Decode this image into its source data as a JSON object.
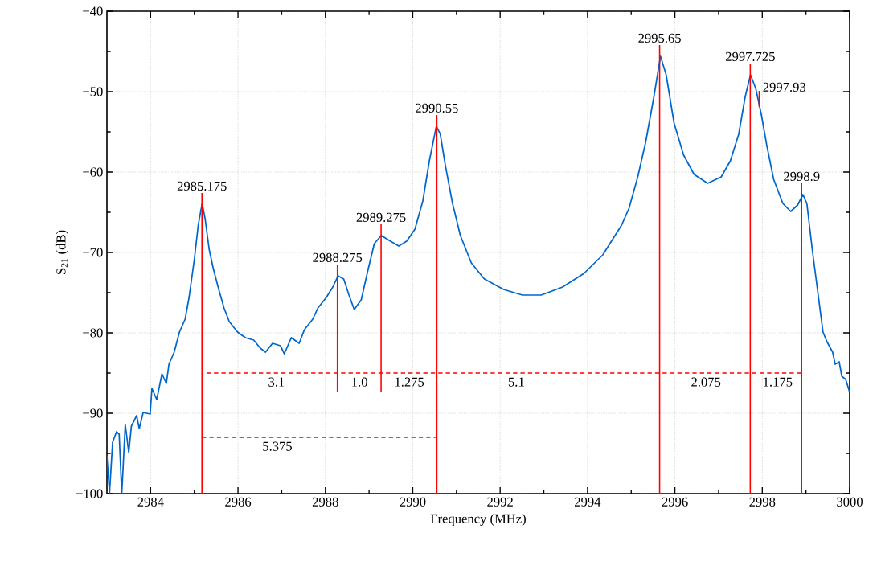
{
  "chart_data": {
    "type": "line",
    "xlabel": "Frequency (MHz)",
    "ylabel": "S$_{21}$ (dB)",
    "xlim": [
      2983,
      3000
    ],
    "ylim": [
      -100,
      -40
    ],
    "xticks": [
      2984,
      2986,
      2988,
      2990,
      2992,
      2994,
      2996,
      2998,
      3000
    ],
    "yticks": [
      {
        "value": -100,
        "label": "−100"
      },
      {
        "value": -90,
        "label": "−90"
      },
      {
        "value": -80,
        "label": "−80"
      },
      {
        "value": -70,
        "label": "−70"
      },
      {
        "value": -60,
        "label": "−60"
      },
      {
        "value": -50,
        "label": "−50"
      },
      {
        "value": -40,
        "label": "−40"
      }
    ],
    "grid": true,
    "series": [
      {
        "type": "line",
        "color": "#0066cc",
        "x": [
          2983.0,
          2983.06,
          2983.13,
          2983.22,
          2983.28,
          2983.34,
          2983.42,
          2983.5,
          2983.56,
          2983.68,
          2983.74,
          2983.83,
          2983.99,
          2984.03,
          2984.14,
          2984.26,
          2984.36,
          2984.42,
          2984.54,
          2984.66,
          2984.79,
          2984.88,
          2985.0,
          2985.09,
          2985.18,
          2985.25,
          2985.34,
          2985.43,
          2985.56,
          2985.68,
          2985.8,
          2985.99,
          2986.17,
          2986.36,
          2986.51,
          2986.63,
          2986.79,
          2986.97,
          2987.06,
          2987.22,
          2987.4,
          2987.52,
          2987.71,
          2987.83,
          2988.02,
          2988.17,
          2988.29,
          2988.42,
          2988.54,
          2988.66,
          2988.82,
          2988.97,
          2989.12,
          2989.28,
          2989.49,
          2989.68,
          2989.86,
          2990.05,
          2990.23,
          2990.38,
          2990.54,
          2990.63,
          2990.75,
          2990.91,
          2991.09,
          2991.34,
          2991.64,
          2992.08,
          2992.51,
          2992.94,
          2993.43,
          2993.92,
          2994.35,
          2994.78,
          2994.95,
          2995.15,
          2995.33,
          2995.52,
          2995.67,
          2995.8,
          2995.98,
          2996.2,
          2996.44,
          2996.75,
          2997.06,
          2997.27,
          2997.46,
          2997.61,
          2997.73,
          2997.85,
          2997.98,
          2998.1,
          2998.26,
          2998.47,
          2998.65,
          2998.81,
          2998.93,
          2999.02,
          2999.15,
          2999.27,
          2999.39,
          2999.48,
          2999.61,
          2999.67,
          2999.76,
          2999.82,
          2999.91,
          3000.0
        ],
        "values": [
          -95.3,
          -99.9,
          -93.6,
          -92.3,
          -92.6,
          -100,
          -91.4,
          -94.9,
          -91.6,
          -90.3,
          -91.9,
          -89.9,
          -90.1,
          -86.9,
          -88.3,
          -85.1,
          -86.3,
          -83.9,
          -82.4,
          -79.9,
          -78.3,
          -75.6,
          -70.9,
          -66.6,
          -63.9,
          -65.9,
          -69.6,
          -71.9,
          -74.6,
          -76.9,
          -78.6,
          -79.9,
          -80.6,
          -80.9,
          -81.9,
          -82.4,
          -81.3,
          -81.6,
          -82.6,
          -80.6,
          -81.3,
          -79.6,
          -78.3,
          -76.9,
          -75.6,
          -74.3,
          -72.9,
          -73.3,
          -75.3,
          -77.1,
          -75.9,
          -72.3,
          -68.9,
          -67.9,
          -68.6,
          -69.2,
          -68.6,
          -67.1,
          -63.6,
          -58.6,
          -54.3,
          -55.3,
          -59.3,
          -63.9,
          -67.9,
          -71.3,
          -73.3,
          -74.6,
          -75.3,
          -75.3,
          -74.3,
          -72.6,
          -70.3,
          -66.6,
          -64.5,
          -60.6,
          -56.3,
          -50.6,
          -45.6,
          -47.9,
          -53.9,
          -57.9,
          -60.3,
          -61.4,
          -60.6,
          -58.6,
          -55.3,
          -50.6,
          -47.9,
          -49.6,
          -52.9,
          -56.6,
          -60.9,
          -63.9,
          -64.9,
          -64.1,
          -62.8,
          -63.9,
          -69.9,
          -74.9,
          -79.9,
          -81.1,
          -82.4,
          -83.9,
          -83.6,
          -85.4,
          -85.8,
          -87.4
        ]
      },
      {
        "type": "line",
        "color": "#ff0000",
        "x": [
          2985.175,
          2985.175
        ],
        "values": [
          -100,
          -62.6
        ]
      },
      {
        "type": "line",
        "color": "#ff0000",
        "x": [
          2988.275,
          2988.275
        ],
        "values": [
          -87.4,
          -71.5
        ]
      },
      {
        "type": "line",
        "color": "#ff0000",
        "x": [
          2989.275,
          2989.275
        ],
        "values": [
          -87.4,
          -66.5
        ]
      },
      {
        "type": "line",
        "color": "#ff0000",
        "x": [
          2990.55,
          2990.55
        ],
        "values": [
          -100,
          -52.9
        ]
      },
      {
        "type": "line",
        "color": "#ff0000",
        "x": [
          2995.65,
          2995.65
        ],
        "values": [
          -100,
          -44.2
        ]
      },
      {
        "type": "line",
        "color": "#ff0000",
        "x": [
          2997.725,
          2997.725
        ],
        "values": [
          -100,
          -46.5
        ]
      },
      {
        "type": "line",
        "color": "#ff0000",
        "x": [
          2997.93,
          2997.93
        ],
        "values": [
          -51.9,
          -49.9
        ]
      },
      {
        "type": "line",
        "color": "#ff0000",
        "x": [
          2998.9,
          2998.9
        ],
        "values": [
          -100,
          -61.4
        ]
      },
      {
        "type": "line",
        "color": "#ff0000",
        "line_style": "dashed",
        "x": [
          2985.28,
          2998.9
        ],
        "values": [
          -85,
          -85
        ]
      },
      {
        "type": "line",
        "color": "#ff0000",
        "line_style": "dashed",
        "x": [
          2985.175,
          2990.55
        ],
        "values": [
          -93,
          -93
        ]
      }
    ],
    "annotations": [
      {
        "text": "2985.175",
        "x": 2985.175,
        "y": -62.6
      },
      {
        "text": "2988.275",
        "x": 2988.275,
        "y": -71.5
      },
      {
        "text": "2989.275",
        "x": 2989.275,
        "y": -66.5
      },
      {
        "text": "2990.55",
        "x": 2990.55,
        "y": -52.9
      },
      {
        "text": "2995.65",
        "x": 2995.65,
        "y": -44.2
      },
      {
        "text": "2997.725",
        "x": 2997.725,
        "y": -46.5
      },
      {
        "text": "2997.93",
        "x": 2997.93,
        "y": -49.9
      },
      {
        "text": "2998.9",
        "x": 2998.9,
        "y": -61.4
      },
      {
        "text": "3.1",
        "x": 2986.88,
        "y": -85
      },
      {
        "text": "1.0",
        "x": 2988.78,
        "y": -85
      },
      {
        "text": "1.275",
        "x": 2989.92,
        "y": -85
      },
      {
        "text": "5.1",
        "x": 2992.37,
        "y": -85
      },
      {
        "text": "2.075",
        "x": 2996.71,
        "y": -85
      },
      {
        "text": "1.175",
        "x": 2998.35,
        "y": -85
      },
      {
        "text": "5.375",
        "x": 2986.9,
        "y": -93
      }
    ]
  }
}
